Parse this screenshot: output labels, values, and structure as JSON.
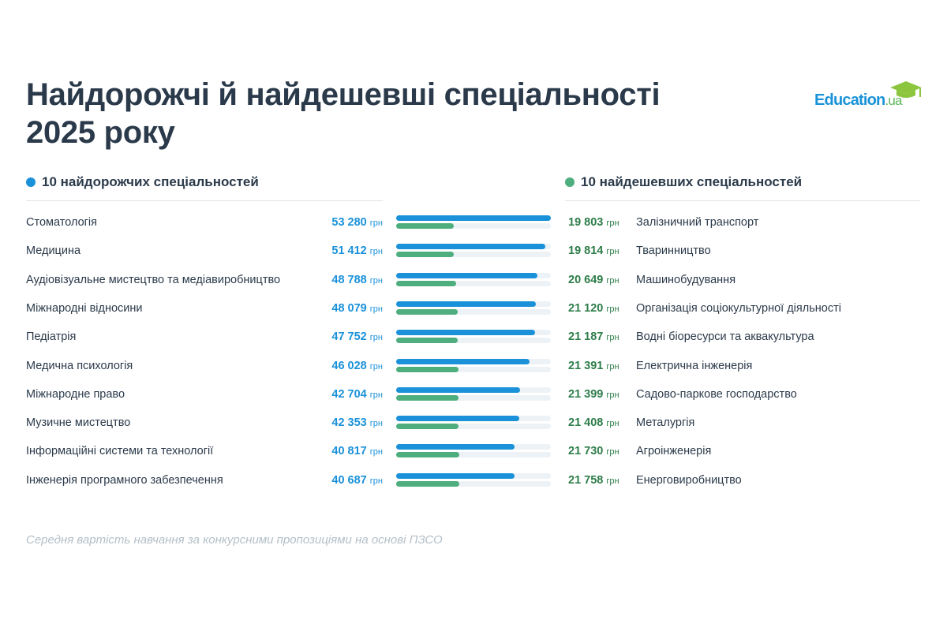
{
  "logo": {
    "text": "Education",
    "suffix": ".ua"
  },
  "chart_data": {
    "type": "paired-bar",
    "title": "Найдорожчі й найдешевші спеціальності 2025 року",
    "unit": "грн",
    "xlim": [
      0,
      53280
    ],
    "series": [
      {
        "name": "10 найдорожчих спеціальностей",
        "color": "#1a91d9",
        "categories": [
          "Стоматологія",
          "Медицина",
          "Аудіовізуальне мистецтво та медіавиробництво",
          "Міжнародні відносини",
          "Педіатрія",
          "Медична психологія",
          "Міжнародне право",
          "Музичне мистецтво",
          "Інформаційні системи та технології",
          "Інженерія програмного забезпечення"
        ],
        "values": [
          53280,
          51412,
          48788,
          48079,
          47752,
          46028,
          42704,
          42353,
          40817,
          40687
        ],
        "value_labels": [
          "53 280",
          "51 412",
          "48 788",
          "48 079",
          "47 752",
          "46 028",
          "42 704",
          "42 353",
          "40 817",
          "40 687"
        ]
      },
      {
        "name": "10 найдешевших спеціальностей",
        "color": "#4fae7d",
        "categories": [
          "Залізничний транспорт",
          "Тваринництво",
          "Машинобудування",
          "Організація соціокультурної діяльності",
          "Водні біоресурси та аквакультура",
          "Електрична інженерія",
          "Садово-паркове господарство",
          "Металургія",
          "Агроінженерія",
          "Енерговиробництво"
        ],
        "values": [
          19803,
          19814,
          20649,
          21120,
          21187,
          21391,
          21399,
          21408,
          21730,
          21758
        ],
        "value_labels": [
          "19 803",
          "19 814",
          "20 649",
          "21 120",
          "21 187",
          "21 391",
          "21 399",
          "21 408",
          "21 730",
          "21 758"
        ]
      }
    ],
    "note": "Середня вартість навчання за конкурсними пропозиціями на основі ПЗСО"
  }
}
